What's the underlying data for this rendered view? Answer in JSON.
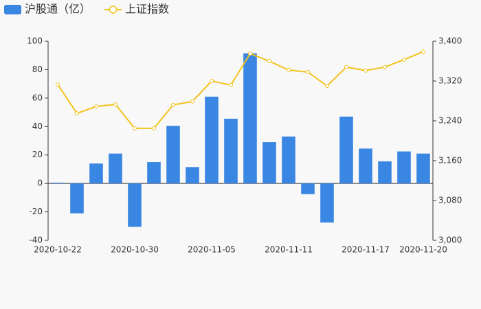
{
  "chart_data": {
    "type": "bar-line",
    "categories": [
      "2020-10-22",
      null,
      null,
      null,
      "2020-10-30",
      null,
      null,
      null,
      "2020-11-05",
      null,
      null,
      null,
      "2020-11-11",
      null,
      null,
      null,
      "2020-11-17",
      null,
      null,
      "2020-11-20"
    ],
    "series": [
      {
        "name": "沪股通（亿）",
        "type": "bar",
        "color": "#3a86e3",
        "values": [
          0.5,
          -21,
          14,
          21,
          -30.5,
          15,
          40.5,
          11.5,
          61,
          45.5,
          91.5,
          29,
          33,
          -7.5,
          -27.5,
          47,
          24.5,
          15.5,
          22.5,
          21
        ]
      },
      {
        "name": "上证指数",
        "type": "line",
        "axis": "y2",
        "color": "#f2c31c",
        "values": [
          3313,
          3255,
          3269,
          3273,
          3225,
          3225,
          3272,
          3279,
          3320,
          3312,
          3375,
          3360,
          3342,
          3338,
          3310,
          3348,
          3341,
          3348,
          3363,
          3379
        ]
      }
    ],
    "ylim": [
      -40,
      100
    ],
    "yticks": [
      -40,
      -20,
      0,
      20,
      40,
      60,
      80,
      100
    ],
    "y2lim": [
      3000,
      3400
    ],
    "y2ticks": [
      {
        "value": 3000,
        "label": "3,000"
      },
      {
        "value": 3080,
        "label": "3,080"
      },
      {
        "value": 3160,
        "label": "3,160"
      },
      {
        "value": 3240,
        "label": "3,240"
      },
      {
        "value": 3320,
        "label": "3,320"
      },
      {
        "value": 3400,
        "label": "3,400"
      }
    ]
  }
}
